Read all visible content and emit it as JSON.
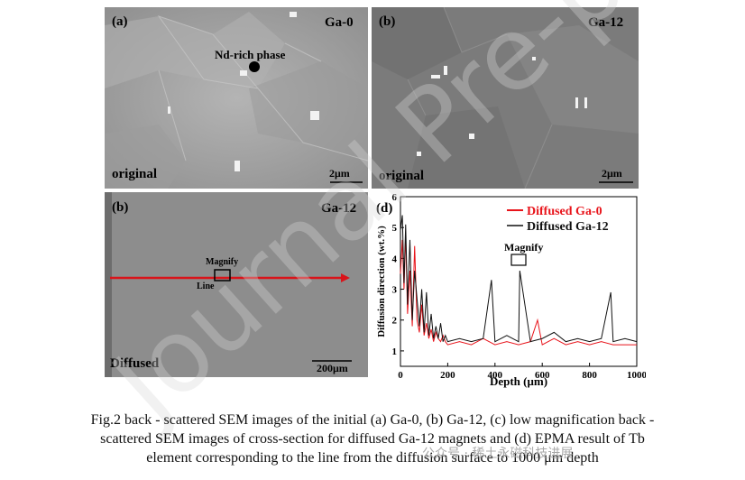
{
  "panels": {
    "a": {
      "label": "(a)",
      "sample": "Ga-0",
      "condition": "original",
      "scale": "2μm",
      "annotation": "Nd-rich phase"
    },
    "b": {
      "label": "(b)",
      "sample": "Ga-12",
      "condition": "original",
      "scale": "2μm"
    },
    "c": {
      "label": "(b)",
      "sample": "Ga-12",
      "condition": "Diffused",
      "scale": "200μm",
      "magnify": "Magnify",
      "line": "Line"
    },
    "d": {
      "label": "(d)",
      "magnify": "Magnify"
    }
  },
  "watermark": {
    "text": "Journal Pre-proof",
    "brand": "公众号 · 稀土永磁科技进展"
  },
  "caption": {
    "line1": "Fig.2 back - scattered SEM images of the initial (a) Ga-0, (b) Ga-12, (c) low magnification back -",
    "line2": "scattered SEM images of cross-section for diffused Ga-12 magnets and (d) EPMA result of Tb",
    "line3": "element corresponding to the line from the diffusion surface to 1000 μm depth"
  },
  "chart_data": {
    "type": "line",
    "xlabel": "Depth (μm)",
    "ylabel": "Diffusion direction (wt.%)",
    "xlim": [
      0,
      1000
    ],
    "ylim": [
      0.5,
      6
    ],
    "xticks": [
      0,
      200,
      400,
      600,
      800,
      1000
    ],
    "yticks": [
      1,
      2,
      3,
      4,
      5,
      6
    ],
    "legend_position": "top-right",
    "series": [
      {
        "name": "Diffused Ga-0",
        "color": "#e8141b",
        "x": [
          0,
          8,
          15,
          22,
          30,
          40,
          50,
          60,
          70,
          80,
          90,
          100,
          110,
          120,
          130,
          140,
          150,
          160,
          170,
          180,
          190,
          200,
          250,
          300,
          350,
          400,
          450,
          500,
          550,
          580,
          600,
          650,
          700,
          750,
          800,
          850,
          900,
          950,
          1000
        ],
        "y": [
          3.5,
          4.6,
          3.0,
          4.8,
          2.2,
          3.6,
          1.8,
          4.4,
          2.0,
          1.6,
          2.5,
          1.5,
          1.9,
          1.4,
          1.7,
          1.3,
          1.6,
          1.4,
          1.3,
          1.5,
          1.3,
          1.2,
          1.3,
          1.2,
          1.4,
          1.2,
          1.3,
          1.2,
          1.3,
          2.0,
          1.2,
          1.4,
          1.2,
          1.3,
          1.2,
          1.3,
          1.2,
          1.2,
          1.2
        ]
      },
      {
        "name": "Diffused Ga-12",
        "color": "#111111",
        "x": [
          0,
          8,
          15,
          22,
          30,
          40,
          50,
          60,
          70,
          80,
          90,
          100,
          110,
          120,
          130,
          140,
          150,
          160,
          170,
          180,
          190,
          200,
          250,
          300,
          350,
          385,
          400,
          450,
          500,
          505,
          550,
          600,
          650,
          700,
          750,
          800,
          850,
          890,
          900,
          950,
          1000
        ],
        "y": [
          4.9,
          5.4,
          3.2,
          5.1,
          2.5,
          4.6,
          2.0,
          3.6,
          2.7,
          1.8,
          3.0,
          1.6,
          2.9,
          1.5,
          2.2,
          1.4,
          1.8,
          1.4,
          1.9,
          1.3,
          1.5,
          1.3,
          1.4,
          1.3,
          1.4,
          3.3,
          1.3,
          1.5,
          1.3,
          3.6,
          1.3,
          1.4,
          1.6,
          1.3,
          1.4,
          1.3,
          1.4,
          2.9,
          1.3,
          1.4,
          1.3
        ]
      }
    ]
  }
}
